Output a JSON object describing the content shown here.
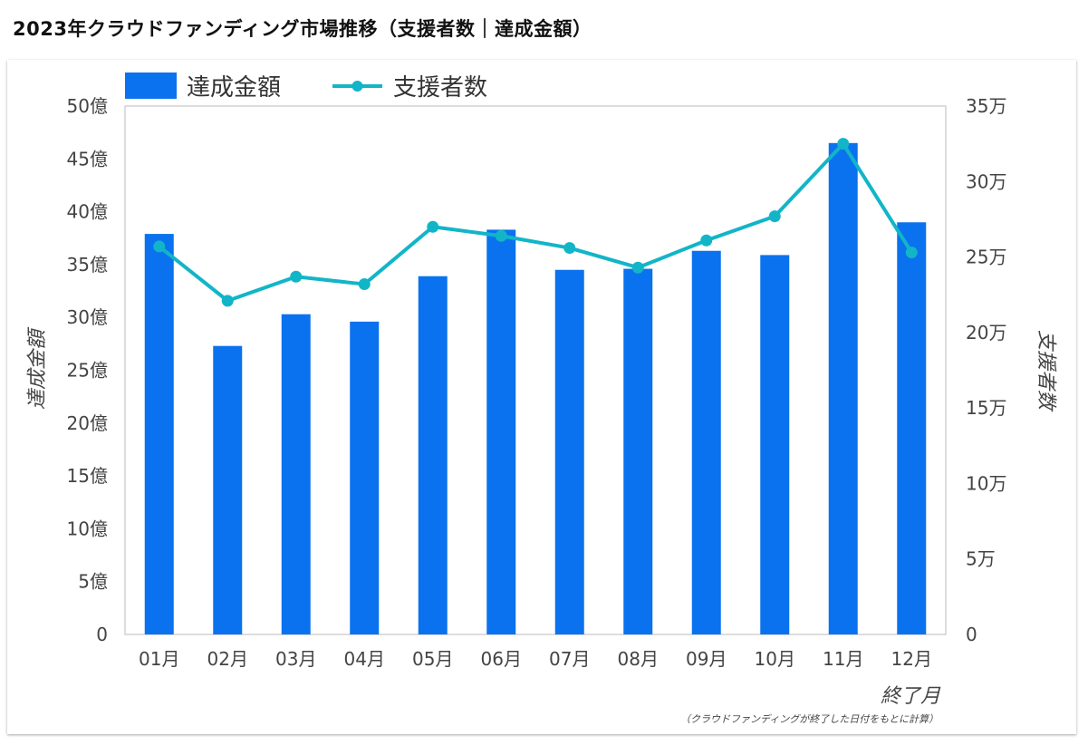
{
  "page": {
    "title": "2023年クラウドファンディング市場推移（支援者数｜達成金額）"
  },
  "chart_data": {
    "type": "bar",
    "categories": [
      "01月",
      "02月",
      "03月",
      "04月",
      "05月",
      "06月",
      "07月",
      "08月",
      "09月",
      "10月",
      "11月",
      "12月"
    ],
    "series": [
      {
        "name": "達成金額",
        "type": "bar",
        "axis": "left",
        "color": "#0a72ee",
        "values": [
          3790000000,
          2730000000,
          3030000000,
          2960000000,
          3390000000,
          3830000000,
          3450000000,
          3460000000,
          3630000000,
          3590000000,
          4650000000,
          3900000000
        ]
      },
      {
        "name": "支援者数",
        "type": "line",
        "axis": "right",
        "color": "#12b5c8",
        "values": [
          257000,
          221000,
          237000,
          232000,
          270000,
          264000,
          256000,
          243000,
          261000,
          277000,
          325000,
          253000
        ]
      }
    ],
    "y_left": {
      "label": "達成金額",
      "ylim": [
        0,
        5000000000
      ],
      "ticks": [
        0,
        500000000,
        1000000000,
        1500000000,
        2000000000,
        2500000000,
        3000000000,
        3500000000,
        4000000000,
        4500000000,
        5000000000
      ],
      "tick_labels": [
        "0",
        "5億",
        "10億",
        "15億",
        "20億",
        "25億",
        "30億",
        "35億",
        "40億",
        "45億",
        "50億"
      ]
    },
    "y_right": {
      "label": "支援者数",
      "ylim": [
        0,
        350000
      ],
      "ticks": [
        0,
        50000,
        100000,
        150000,
        200000,
        250000,
        300000,
        350000
      ],
      "tick_labels": [
        "0",
        "5万",
        "10万",
        "15万",
        "20万",
        "25万",
        "30万",
        "35万"
      ]
    },
    "xlabel": "終了月",
    "note": "（クラウドファンディングが終了した日付をもとに計算）",
    "legend_placement": "top-left",
    "grid": false
  }
}
